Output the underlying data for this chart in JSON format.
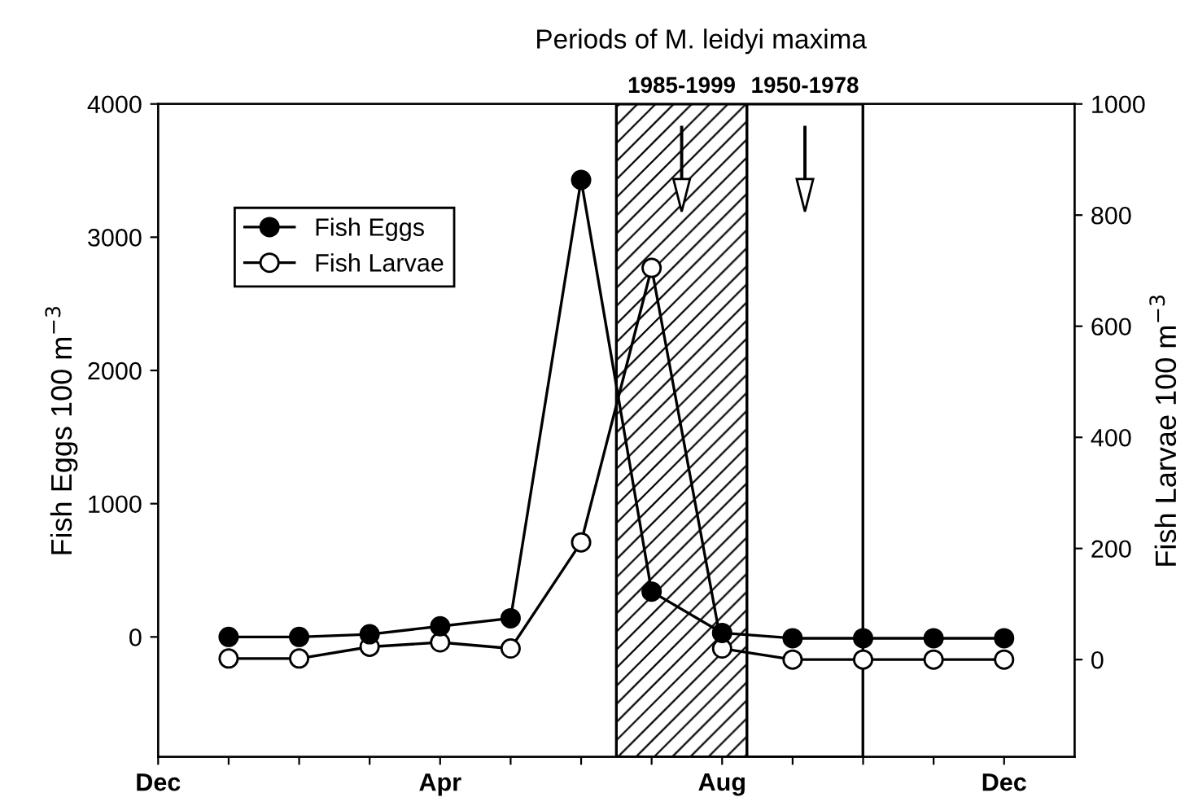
{
  "chart_data": {
    "type": "line",
    "title": "Periods of M. leidyi maxima",
    "ylabel": "Fish Eggs 100 m$^{−3}$",
    "y2label": "Fish Larvae 100 m$^{−3}$",
    "categories": [
      "Dec",
      null,
      null,
      null,
      "Apr",
      null,
      null,
      null,
      "Aug",
      null,
      null,
      null,
      "Dec"
    ],
    "ylim": [
      -900,
      4000
    ],
    "yticks": [
      0,
      1000,
      2000,
      3000,
      4000
    ],
    "y2lim": [
      -175,
      1000
    ],
    "y2ticks": [
      0,
      200,
      400,
      600,
      800,
      1000
    ],
    "series": [
      {
        "name": "Fish Eggs",
        "color": "#000000",
        "marker": "circle",
        "values": [
          null,
          0,
          0,
          20,
          80,
          140,
          3430,
          340,
          30,
          -10,
          -10,
          -10,
          -10
        ]
      },
      {
        "name": "Fish Larvae",
        "color": "#000000",
        "marker": "circle",
        "axis": "y2",
        "values": [
          null,
          2,
          2,
          23,
          31,
          20,
          211,
          705,
          20,
          0,
          0,
          0,
          0
        ]
      }
    ],
    "annotations": [
      "1985-1999",
      "1950-1978"
    ],
    "legend": "top left",
    "grid": false,
    "line_style": "solid"
  }
}
